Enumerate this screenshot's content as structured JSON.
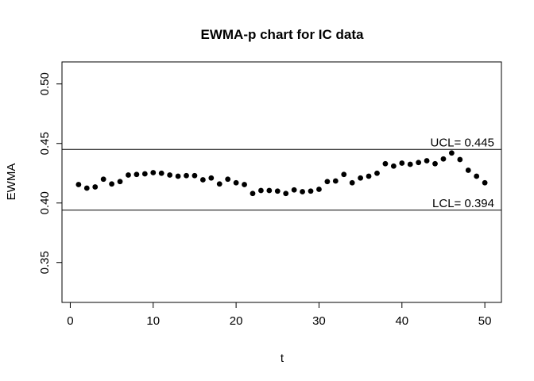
{
  "chart_data": {
    "type": "scatter",
    "title": "EWMA-p chart for IC data",
    "xlabel": "t",
    "ylabel": "EWMA",
    "xlim": [
      -1,
      52
    ],
    "ylim": [
      0.3165,
      0.5185
    ],
    "xticks": [
      0,
      10,
      20,
      30,
      40,
      50
    ],
    "xtick_labels": [
      "0",
      "10",
      "20",
      "30",
      "40",
      "50"
    ],
    "yticks": [
      0.35,
      0.4,
      0.45,
      0.5
    ],
    "ytick_labels": [
      "0.35",
      "0.40",
      "0.45",
      "0.50"
    ],
    "grid": false,
    "reference_lines": [
      {
        "name": "UCL",
        "value": 0.445,
        "label": "UCL= 0.445"
      },
      {
        "name": "LCL",
        "value": 0.394,
        "label": "LCL= 0.394"
      }
    ],
    "x": [
      1,
      2,
      3,
      4,
      5,
      6,
      7,
      8,
      9,
      10,
      11,
      12,
      13,
      14,
      15,
      16,
      17,
      18,
      19,
      20,
      21,
      22,
      23,
      24,
      25,
      26,
      27,
      28,
      29,
      30,
      31,
      32,
      33,
      34,
      35,
      36,
      37,
      38,
      39,
      40,
      41,
      42,
      43,
      44,
      45,
      46,
      47,
      48,
      49,
      50
    ],
    "y": [
      0.4155,
      0.4125,
      0.4135,
      0.42,
      0.416,
      0.418,
      0.4235,
      0.424,
      0.4245,
      0.4255,
      0.425,
      0.4235,
      0.4225,
      0.423,
      0.423,
      0.4195,
      0.421,
      0.416,
      0.42,
      0.417,
      0.4155,
      0.408,
      0.4105,
      0.4105,
      0.41,
      0.408,
      0.411,
      0.4095,
      0.41,
      0.4115,
      0.418,
      0.4185,
      0.424,
      0.417,
      0.421,
      0.4225,
      0.425,
      0.433,
      0.431,
      0.4335,
      0.4325,
      0.434,
      0.4355,
      0.433,
      0.437,
      0.442,
      0.4365,
      0.4275,
      0.4225,
      0.417
    ]
  }
}
